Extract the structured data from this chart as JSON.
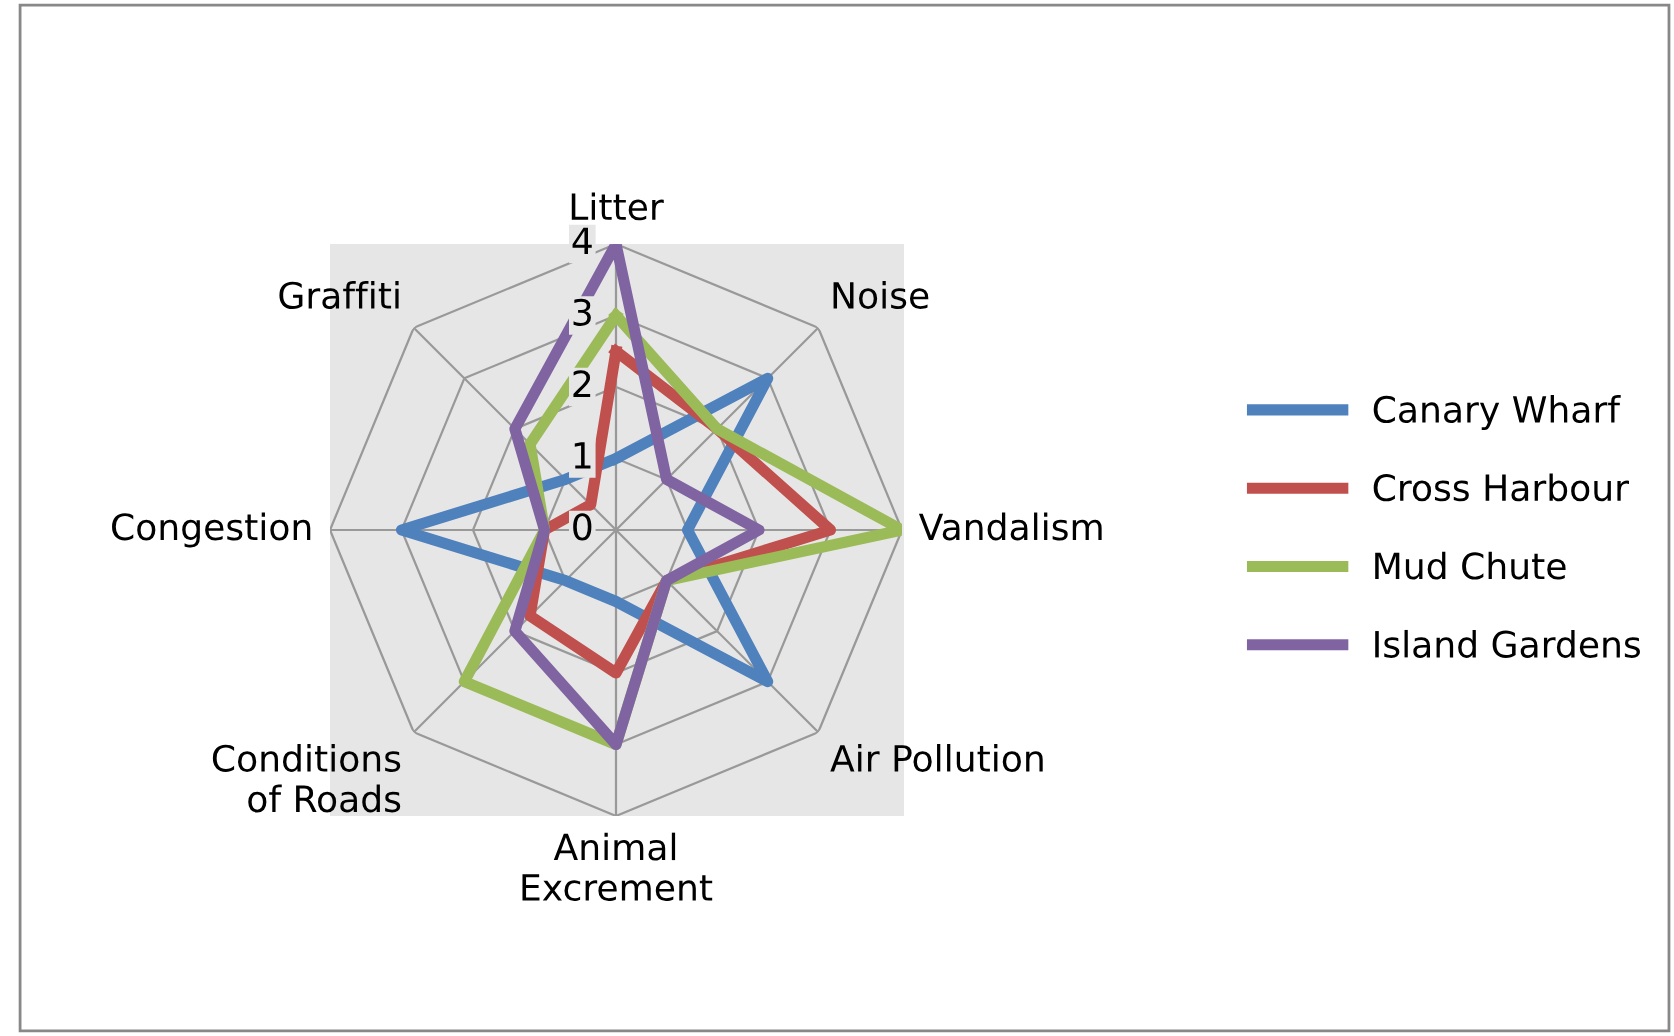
{
  "chart_data": {
    "type": "radar",
    "categories": [
      "Litter",
      "Noise",
      "Vandalism",
      "Air Pollution",
      "Animal\nExcrement",
      "Conditions\nof Roads",
      "Congestion",
      "Graffiti"
    ],
    "series": [
      {
        "name": "Canary Wharf",
        "color": "#4f81bd",
        "values": [
          1,
          3,
          1,
          3,
          1,
          1,
          3,
          1
        ]
      },
      {
        "name": "Cross Harbour",
        "color": "#c0504d",
        "values": [
          2.5,
          2,
          3,
          1,
          2,
          1.7,
          1,
          0.5
        ]
      },
      {
        "name": "Mud Chute",
        "color": "#9bbb59",
        "values": [
          3,
          2,
          4,
          1,
          3,
          3,
          1,
          1.7
        ]
      },
      {
        "name": "Island Gardens",
        "color": "#8064a2",
        "values": [
          4,
          1,
          2,
          1,
          3,
          2,
          1,
          2
        ]
      }
    ],
    "ylim": [
      0,
      4
    ],
    "yticks": [
      0,
      1,
      2,
      3,
      4
    ],
    "grid": true,
    "legend": "right"
  }
}
